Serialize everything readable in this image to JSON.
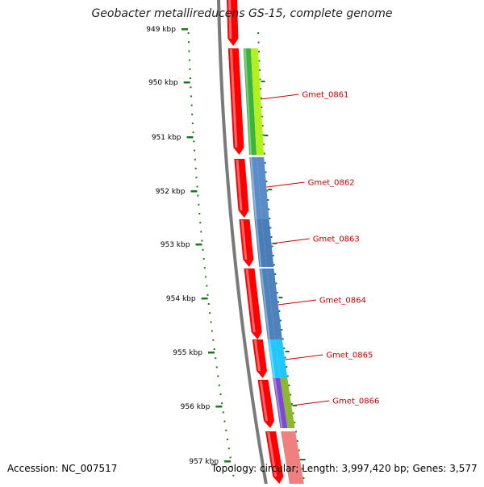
{
  "title": "Geobacter metallireducens GS-15, complete genome",
  "accession": "Accession: NC_007517",
  "summary": "Topology: circular; Length: 3,997,420 bp; Genes: 3,577",
  "colors": {
    "ticks": "#1a7a1a",
    "backbone": "#7a7a7a",
    "cds_forward": "#ff0000",
    "gene_label": "#cc0000"
  },
  "kbp_ticks": [
    "949 kbp",
    "950 kbp",
    "951 kbp",
    "952 kbp",
    "953 kbp",
    "954 kbp",
    "955 kbp",
    "956 kbp",
    "957 kbp"
  ],
  "genes": [
    {
      "label": "Gmet_0861",
      "color": "#3cb43c",
      "color2": "#b4f020"
    },
    {
      "label": "Gmet_0862",
      "color": "#5a8cc8",
      "color2": "#5a8cc8"
    },
    {
      "label": "Gmet_0863",
      "color": "#4a7cb8",
      "color2": "#4a7cb8"
    },
    {
      "label": "Gmet_0864",
      "color": "#4e82bc",
      "color2": "#4e82bc"
    },
    {
      "label": "Gmet_0865",
      "color": "#20c8ff",
      "color2": "#20c8ff"
    },
    {
      "label": "Gmet_0866",
      "color": "#7a4ad0",
      "color2": "#8cb830"
    }
  ],
  "next_gene_color": "#f08080"
}
